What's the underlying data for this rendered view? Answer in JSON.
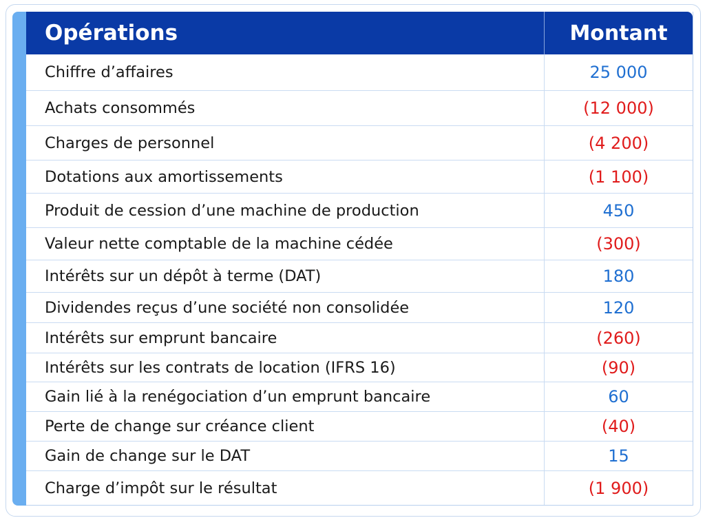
{
  "table": {
    "header": {
      "operations": "Opérations",
      "amount": "Montant"
    },
    "rows": [
      {
        "label": "Chiffre d’affaires",
        "amount": "25 000",
        "sign": "positive"
      },
      {
        "label": "Achats consommés",
        "amount": "(12 000)",
        "sign": "negative"
      },
      {
        "label": "Charges de personnel",
        "amount": "(4 200)",
        "sign": "negative"
      },
      {
        "label": "Dotations aux amortissements",
        "amount": "(1 100)",
        "sign": "negative"
      },
      {
        "label": "Produit de cession d’une machine de production",
        "amount": "450",
        "sign": "positive"
      },
      {
        "label": "Valeur nette comptable de la machine cédée",
        "amount": "(300)",
        "sign": "negative"
      },
      {
        "label": "Intérêts sur un dépôt à terme (DAT)",
        "amount": "180",
        "sign": "positive"
      },
      {
        "label": "Dividendes reçus d’une société non consolidée",
        "amount": "120",
        "sign": "positive"
      },
      {
        "label": "Intérêts sur emprunt bancaire",
        "amount": "(260)",
        "sign": "negative"
      },
      {
        "label": "Intérêts sur les contrats de location (IFRS 16)",
        "amount": "(90)",
        "sign": "negative"
      },
      {
        "label": "Gain lié à la renégociation d’un emprunt bancaire",
        "amount": "60",
        "sign": "positive"
      },
      {
        "label": "Perte de change sur créance client",
        "amount": "(40)",
        "sign": "negative"
      },
      {
        "label": "Gain de change sur le DAT",
        "amount": "15",
        "sign": "positive"
      },
      {
        "label": "Charge d’impôt sur le résultat",
        "amount": "(1 900)",
        "sign": "negative"
      }
    ]
  },
  "colors": {
    "header_bg": "#0a3aa6",
    "accent_bar": "#6aaef0",
    "positive": "#1f6fd1",
    "negative": "#e01b1b"
  }
}
